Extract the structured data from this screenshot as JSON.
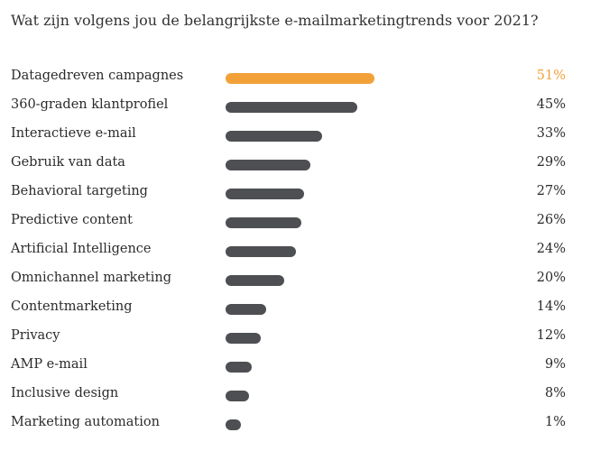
{
  "chart_data": {
    "type": "bar",
    "orientation": "horizontal",
    "title": "Wat zijn volgens jou de belangrijkste e-mailmarketingtrends voor 2021?",
    "categories": [
      "Datagedreven campagnes",
      "360-graden klantprofiel",
      "Interactieve e-mail",
      "Gebruik van data",
      "Behavioral targeting",
      "Predictive content",
      "Artificial Intelligence",
      "Omnichannel marketing",
      "Contentmarketing",
      "Privacy",
      "AMP e-mail",
      "Inclusive design",
      "Marketing automation"
    ],
    "values": [
      51,
      45,
      33,
      29,
      27,
      26,
      24,
      20,
      14,
      12,
      9,
      8,
      1
    ],
    "value_labels": [
      "51%",
      "45%",
      "33%",
      "29%",
      "27%",
      "26%",
      "24%",
      "20%",
      "14%",
      "12%",
      "9%",
      "8%",
      "1%"
    ],
    "unit": "%",
    "highlight_index": 0,
    "xlim": [
      0,
      51
    ],
    "grid": false,
    "legend": "none"
  },
  "colors": {
    "highlight": "#f2a139",
    "bar": "#4d4f52",
    "text": "#2b2b2b"
  }
}
